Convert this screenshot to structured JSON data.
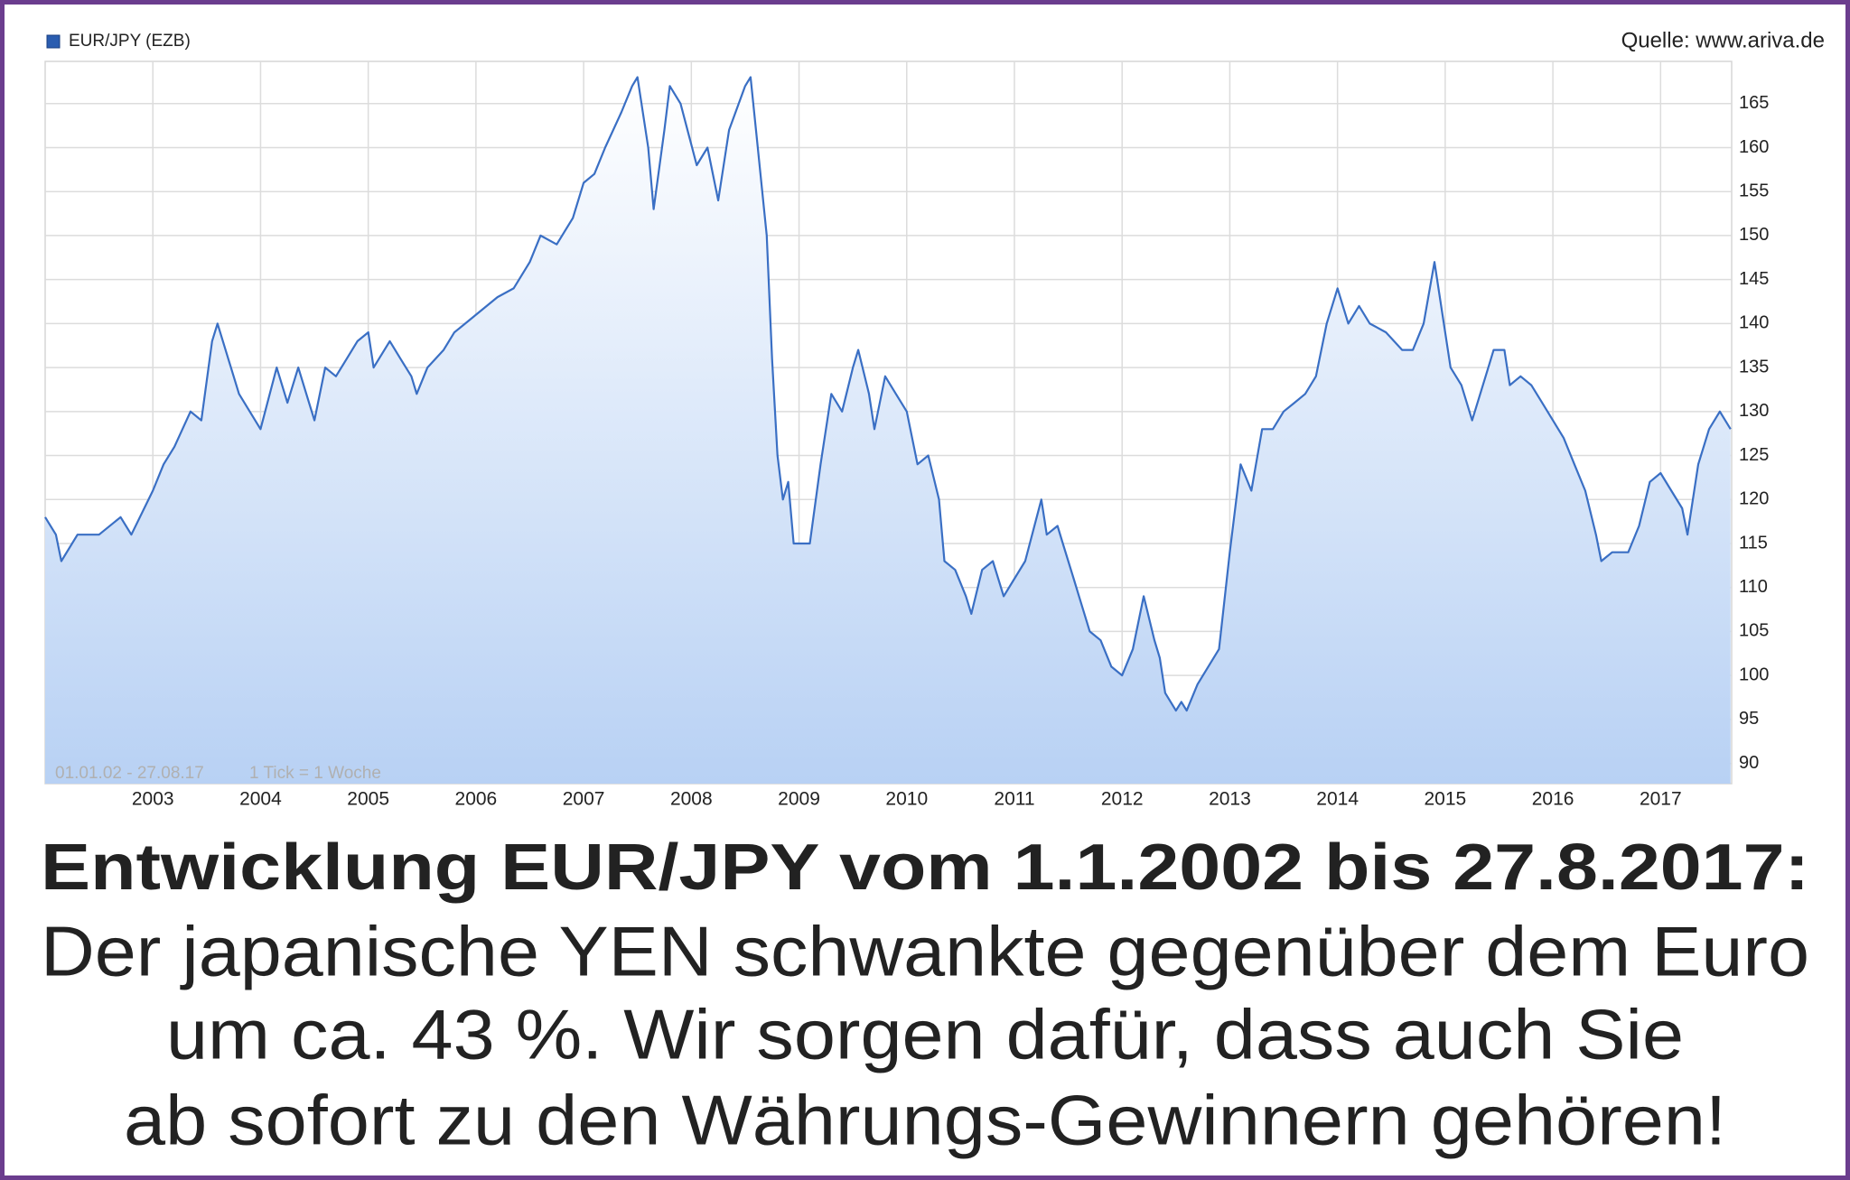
{
  "chart_data": {
    "type": "area",
    "legend_label": "EUR/JPY (EZB)",
    "source": "Quelle: www.ariva.de",
    "annotations": [
      "01.01.02 - 27.08.17",
      "1 Tick = 1 Woche"
    ],
    "color": "#3a6fc4",
    "grid": true,
    "xlim": [
      2002,
      2017.66
    ],
    "xticks": [
      2003,
      2004,
      2005,
      2006,
      2007,
      2008,
      2009,
      2010,
      2011,
      2012,
      2013,
      2014,
      2015,
      2016,
      2017
    ],
    "ylim": [
      87.7,
      169.8
    ],
    "yticks": [
      90,
      95,
      100,
      105,
      110,
      115,
      120,
      125,
      130,
      135,
      140,
      145,
      150,
      155,
      160,
      165
    ],
    "x": [
      2002.0,
      2002.1,
      2002.15,
      2002.3,
      2002.5,
      2002.7,
      2002.8,
      2003.0,
      2003.1,
      2003.2,
      2003.35,
      2003.45,
      2003.55,
      2003.6,
      2003.7,
      2003.8,
      2003.9,
      2004.0,
      2004.15,
      2004.25,
      2004.35,
      2004.45,
      2004.5,
      2004.6,
      2004.7,
      2004.8,
      2004.9,
      2005.0,
      2005.05,
      2005.2,
      2005.3,
      2005.4,
      2005.45,
      2005.55,
      2005.7,
      2005.8,
      2005.9,
      2006.0,
      2006.2,
      2006.35,
      2006.5,
      2006.6,
      2006.75,
      2006.9,
      2007.0,
      2007.1,
      2007.2,
      2007.35,
      2007.45,
      2007.5,
      2007.6,
      2007.65,
      2007.75,
      2007.8,
      2007.9,
      2008.05,
      2008.15,
      2008.25,
      2008.35,
      2008.5,
      2008.55,
      2008.6,
      2008.7,
      2008.75,
      2008.8,
      2008.85,
      2008.9,
      2008.95,
      2009.1,
      2009.2,
      2009.3,
      2009.4,
      2009.5,
      2009.55,
      2009.65,
      2009.7,
      2009.8,
      2009.9,
      2010.0,
      2010.1,
      2010.2,
      2010.3,
      2010.35,
      2010.45,
      2010.55,
      2010.6,
      2010.7,
      2010.8,
      2010.9,
      2011.0,
      2011.1,
      2011.25,
      2011.3,
      2011.4,
      2011.45,
      2011.55,
      2011.6,
      2011.7,
      2011.8,
      2011.9,
      2012.0,
      2012.1,
      2012.2,
      2012.3,
      2012.35,
      2012.4,
      2012.5,
      2012.55,
      2012.6,
      2012.7,
      2012.8,
      2012.9,
      2013.0,
      2013.1,
      2013.2,
      2013.3,
      2013.4,
      2013.5,
      2013.6,
      2013.7,
      2013.8,
      2013.9,
      2014.0,
      2014.1,
      2014.2,
      2014.3,
      2014.45,
      2014.6,
      2014.7,
      2014.8,
      2014.9,
      2014.95,
      2015.05,
      2015.15,
      2015.25,
      2015.4,
      2015.45,
      2015.55,
      2015.6,
      2015.7,
      2015.8,
      2015.9,
      2016.0,
      2016.1,
      2016.2,
      2016.3,
      2016.4,
      2016.45,
      2016.55,
      2016.7,
      2016.8,
      2016.9,
      2017.0,
      2017.1,
      2017.2,
      2017.25,
      2017.35,
      2017.45,
      2017.55,
      2017.65
    ],
    "values": [
      118,
      116,
      113,
      116,
      116,
      118,
      116,
      121,
      124,
      126,
      130,
      129,
      138,
      140,
      136,
      132,
      130,
      128,
      135,
      131,
      135,
      131,
      129,
      135,
      134,
      136,
      138,
      139,
      135,
      138,
      136,
      134,
      132,
      135,
      137,
      139,
      140,
      141,
      143,
      144,
      147,
      150,
      149,
      152,
      156,
      157,
      160,
      164,
      167,
      168,
      160,
      153,
      162,
      167,
      165,
      158,
      160,
      154,
      162,
      167,
      168,
      162,
      150,
      136,
      125,
      120,
      122,
      115,
      115,
      124,
      132,
      130,
      135,
      137,
      132,
      128,
      134,
      132,
      130,
      124,
      125,
      120,
      113,
      112,
      109,
      107,
      112,
      113,
      109,
      111,
      113,
      120,
      116,
      117,
      115,
      111,
      109,
      105,
      104,
      101,
      100,
      103,
      109,
      104,
      102,
      98,
      96,
      97,
      96,
      99,
      101,
      103,
      114,
      124,
      121,
      128,
      128,
      130,
      131,
      132,
      134,
      140,
      144,
      140,
      142,
      140,
      139,
      137,
      137,
      140,
      147,
      143,
      135,
      133,
      129,
      135,
      137,
      137,
      133,
      134,
      133,
      131,
      129,
      127,
      124,
      121,
      116,
      113,
      114,
      114,
      117,
      122,
      123,
      121,
      119,
      116,
      124,
      128,
      130,
      128
    ]
  },
  "caption": {
    "title": "Entwicklung EUR/JPY vom 1.1.2002 bis 27.8.2017:",
    "lines": [
      "Der japanische YEN schwankte gegenüber dem Euro",
      "um ca. 43 %. Wir sorgen dafür, dass auch Sie",
      "ab sofort zu den Währungs-Gewinnern gehören!"
    ]
  }
}
